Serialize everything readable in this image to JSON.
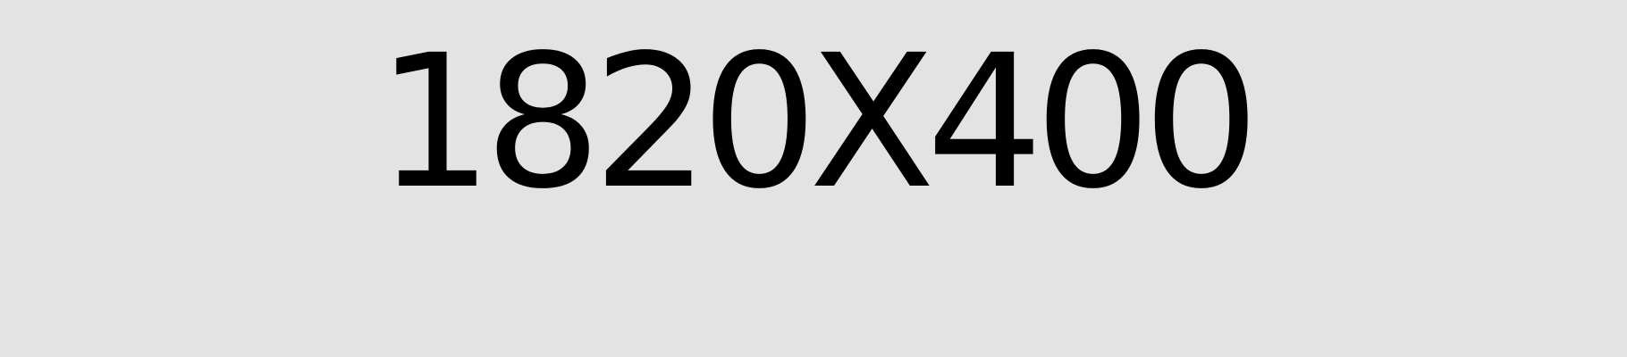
{
  "placeholder": {
    "label": "1820X400",
    "background_color": "#e3e3e3",
    "text_color": "#000000"
  }
}
